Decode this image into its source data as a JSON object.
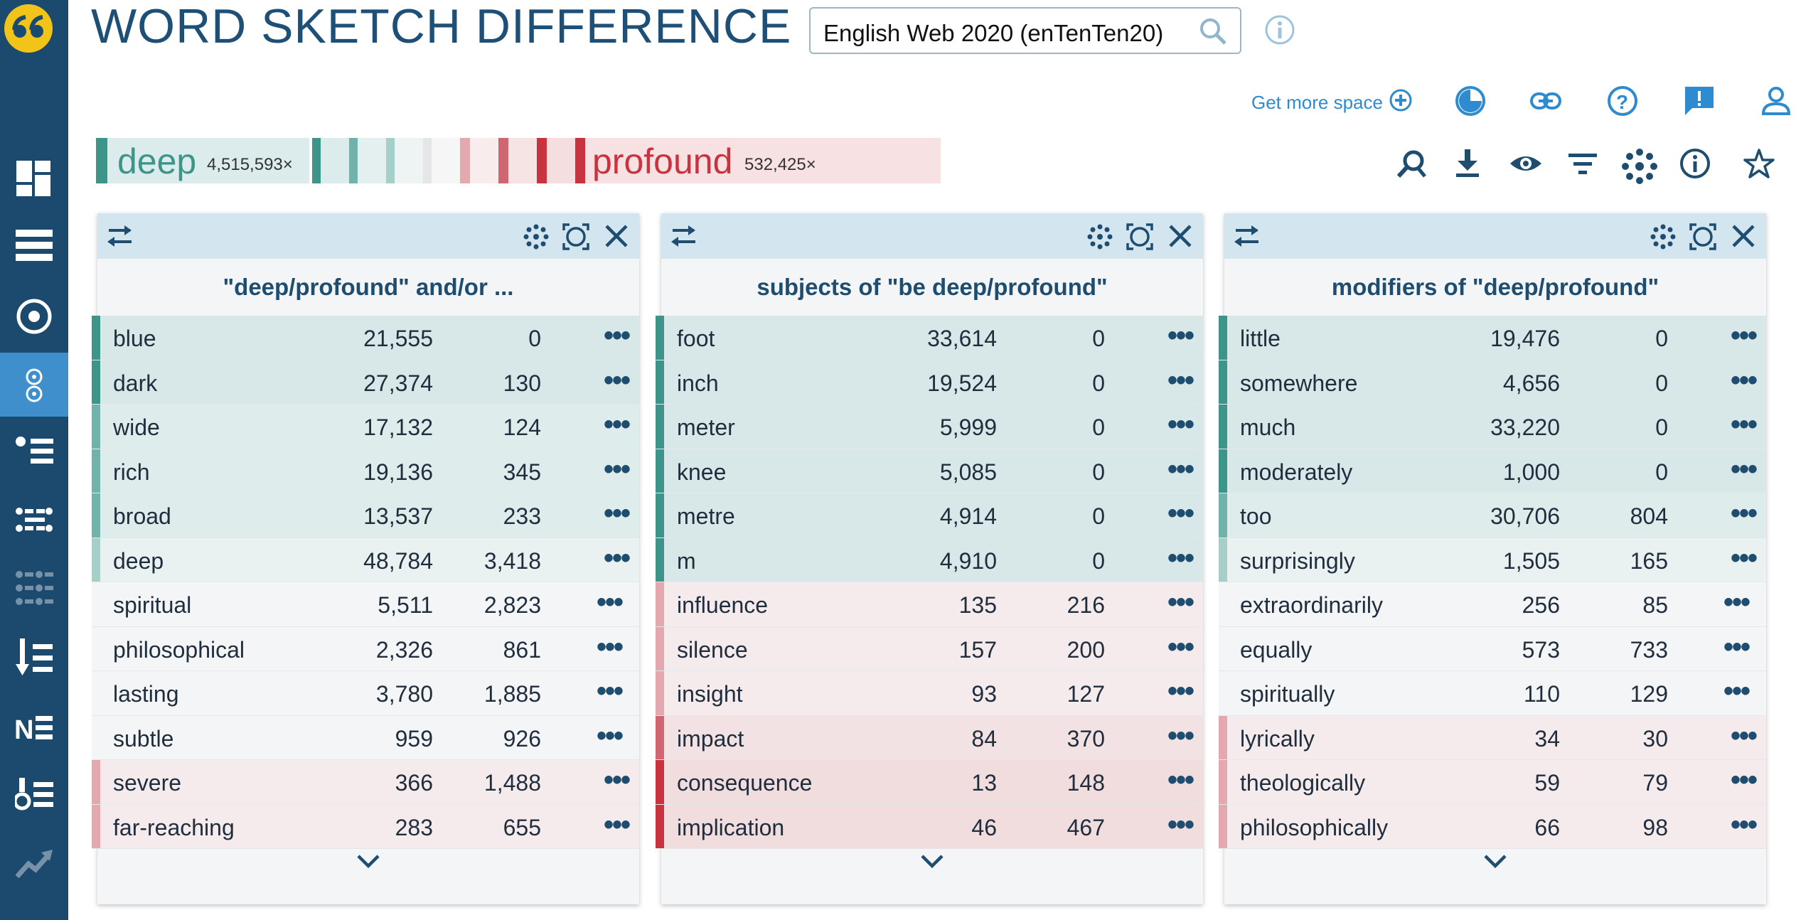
{
  "app": {
    "title": "WORD SKETCH DIFFERENCE",
    "corpus": "English Web 2020 (enTenTen20)",
    "more_space": "Get more space"
  },
  "colors": {
    "sidebar": "#1c4a6e",
    "accent_blue": "#3f8fcc",
    "deep_green": "#3d958a",
    "profound_red": "#c7333f"
  },
  "sidebar_icons": [
    "dashboard-icon",
    "concordance-icon",
    "wordlist-icon",
    "word-sketch-icon",
    "thesaurus-icon",
    "sketch-diff-icon",
    "keywords-icon",
    "ngrams-icon",
    "ne-icon",
    "parallel-icon",
    "trends-icon"
  ],
  "top_icons": [
    "theme-icon",
    "link-icon",
    "help-icon",
    "feedback-icon",
    "user-icon"
  ],
  "toolbar_icons": [
    "zoom-icon",
    "download-icon",
    "view-icon",
    "filter-icon",
    "settings-icon",
    "info-icon",
    "star-icon"
  ],
  "legend": {
    "word1": "deep",
    "freq1": "4,515,593×",
    "word2": "profound",
    "freq2": "532,425×"
  },
  "panels": [
    {
      "title": "\"deep/profound\" and/or ...",
      "rows": [
        {
          "word": "blue",
          "f1": "21,555",
          "f2": "0",
          "side": "left3"
        },
        {
          "word": "dark",
          "f1": "27,374",
          "f2": "130",
          "side": "left3"
        },
        {
          "word": "wide",
          "f1": "17,132",
          "f2": "124",
          "side": "left2"
        },
        {
          "word": "rich",
          "f1": "19,136",
          "f2": "345",
          "side": "left2"
        },
        {
          "word": "broad",
          "f1": "13,537",
          "f2": "233",
          "side": "left2"
        },
        {
          "word": "deep",
          "f1": "48,784",
          "f2": "3,418",
          "side": "left1"
        },
        {
          "word": "spiritual",
          "f1": "5,511",
          "f2": "2,823",
          "side": "mid"
        },
        {
          "word": "philosophical",
          "f1": "2,326",
          "f2": "861",
          "side": "mid"
        },
        {
          "word": "lasting",
          "f1": "3,780",
          "f2": "1,885",
          "side": "mid"
        },
        {
          "word": "subtle",
          "f1": "959",
          "f2": "926",
          "side": "mid"
        },
        {
          "word": "severe",
          "f1": "366",
          "f2": "1,488",
          "side": "right1"
        },
        {
          "word": "far-reaching",
          "f1": "283",
          "f2": "655",
          "side": "right1"
        }
      ]
    },
    {
      "title": "subjects of \"be deep/profound\"",
      "rows": [
        {
          "word": "foot",
          "f1": "33,614",
          "f2": "0",
          "side": "left3"
        },
        {
          "word": "inch",
          "f1": "19,524",
          "f2": "0",
          "side": "left3"
        },
        {
          "word": "meter",
          "f1": "5,999",
          "f2": "0",
          "side": "left3"
        },
        {
          "word": "knee",
          "f1": "5,085",
          "f2": "0",
          "side": "left3"
        },
        {
          "word": "metre",
          "f1": "4,914",
          "f2": "0",
          "side": "left3"
        },
        {
          "word": "m",
          "f1": "4,910",
          "f2": "0",
          "side": "left3"
        },
        {
          "word": "influence",
          "f1": "135",
          "f2": "216",
          "side": "right1"
        },
        {
          "word": "silence",
          "f1": "157",
          "f2": "200",
          "side": "right1"
        },
        {
          "word": "insight",
          "f1": "93",
          "f2": "127",
          "side": "right1"
        },
        {
          "word": "impact",
          "f1": "84",
          "f2": "370",
          "side": "right2"
        },
        {
          "word": "consequence",
          "f1": "13",
          "f2": "148",
          "side": "right3"
        },
        {
          "word": "implication",
          "f1": "46",
          "f2": "467",
          "side": "right3"
        }
      ]
    },
    {
      "title": "modifiers of \"deep/profound\"",
      "rows": [
        {
          "word": "little",
          "f1": "19,476",
          "f2": "0",
          "side": "left3"
        },
        {
          "word": "somewhere",
          "f1": "4,656",
          "f2": "0",
          "side": "left3"
        },
        {
          "word": "much",
          "f1": "33,220",
          "f2": "0",
          "side": "left3"
        },
        {
          "word": "moderately",
          "f1": "1,000",
          "f2": "0",
          "side": "left3"
        },
        {
          "word": "too",
          "f1": "30,706",
          "f2": "804",
          "side": "left2"
        },
        {
          "word": "surprisingly",
          "f1": "1,505",
          "f2": "165",
          "side": "left1"
        },
        {
          "word": "extraordinarily",
          "f1": "256",
          "f2": "85",
          "side": "mid"
        },
        {
          "word": "equally",
          "f1": "573",
          "f2": "733",
          "side": "mid"
        },
        {
          "word": "spiritually",
          "f1": "110",
          "f2": "129",
          "side": "mid"
        },
        {
          "word": "lyrically",
          "f1": "34",
          "f2": "30",
          "side": "right1"
        },
        {
          "word": "theologically",
          "f1": "59",
          "f2": "79",
          "side": "right1"
        },
        {
          "word": "philosophically",
          "f1": "66",
          "f2": "98",
          "side": "right1"
        }
      ]
    }
  ]
}
